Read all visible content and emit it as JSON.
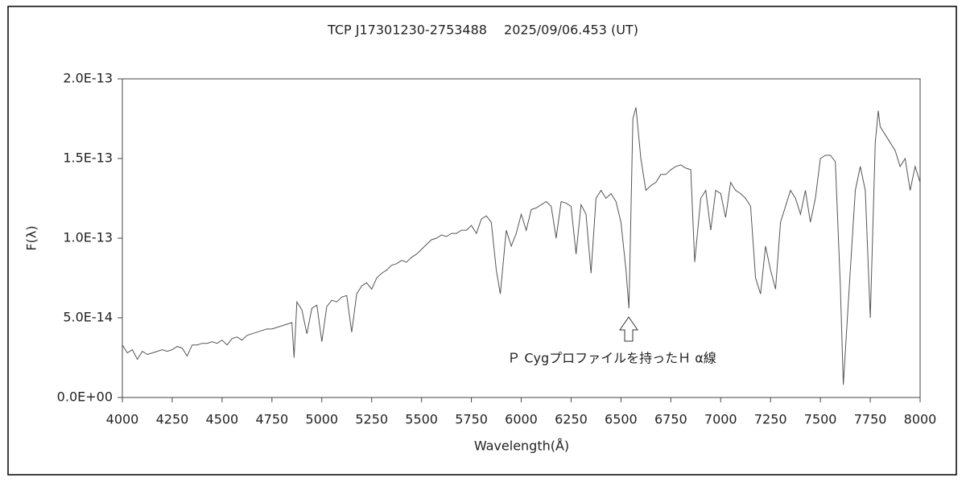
{
  "chart_data": {
    "type": "line",
    "title": "TCP J17301230-2753488　 2025/09/06.453 (UT)",
    "x_label": "Wavelength(Å)",
    "y_label": "F(λ)",
    "annotation": "Ｐ Cygプロファイルを持ったＨ α線",
    "color": "#555555",
    "xlim": [
      4000,
      8000
    ],
    "xticks": [
      4000,
      4250,
      4500,
      4750,
      5000,
      5250,
      5500,
      5750,
      6000,
      6250,
      6500,
      6750,
      7000,
      7250,
      7500,
      7750,
      8000
    ],
    "ylim": [
      0,
      2e-13
    ],
    "yticks": [
      {
        "value": 0,
        "label": "0.0E+00"
      },
      {
        "value": 5e-14,
        "label": "5.0E-14"
      },
      {
        "value": 1e-13,
        "label": "1.0E-13"
      },
      {
        "value": 1.5e-13,
        "label": "1.5E-13"
      },
      {
        "value": 2e-13,
        "label": "2.0E-13"
      }
    ],
    "x": [
      4000,
      4025,
      4050,
      4075,
      4100,
      4125,
      4150,
      4175,
      4200,
      4225,
      4250,
      4275,
      4300,
      4325,
      4350,
      4375,
      4400,
      4425,
      4450,
      4475,
      4500,
      4525,
      4550,
      4575,
      4600,
      4625,
      4650,
      4675,
      4700,
      4725,
      4750,
      4775,
      4800,
      4825,
      4850,
      4861,
      4875,
      4900,
      4925,
      4950,
      4975,
      5000,
      5025,
      5050,
      5075,
      5100,
      5125,
      5150,
      5175,
      5200,
      5225,
      5250,
      5275,
      5300,
      5325,
      5350,
      5375,
      5400,
      5425,
      5450,
      5475,
      5500,
      5525,
      5550,
      5575,
      5600,
      5625,
      5650,
      5675,
      5700,
      5725,
      5750,
      5775,
      5800,
      5825,
      5850,
      5875,
      5895,
      5925,
      5950,
      5975,
      6000,
      6025,
      6050,
      6075,
      6100,
      6125,
      6150,
      6175,
      6200,
      6225,
      6250,
      6275,
      6300,
      6325,
      6350,
      6375,
      6400,
      6425,
      6450,
      6475,
      6500,
      6525,
      6540,
      6560,
      6575,
      6600,
      6625,
      6650,
      6675,
      6700,
      6725,
      6750,
      6775,
      6800,
      6825,
      6850,
      6870,
      6900,
      6925,
      6950,
      6975,
      7000,
      7025,
      7050,
      7075,
      7100,
      7125,
      7150,
      7175,
      7200,
      7225,
      7250,
      7275,
      7300,
      7325,
      7350,
      7375,
      7400,
      7425,
      7450,
      7475,
      7500,
      7525,
      7550,
      7575,
      7600,
      7615,
      7650,
      7675,
      7700,
      7725,
      7750,
      7775,
      7790,
      7800,
      7825,
      7850,
      7875,
      7900,
      7925,
      7950,
      7975,
      8000
    ],
    "values": [
      3.3e-14,
      2.8e-14,
      3e-14,
      2.4e-14,
      2.9e-14,
      2.7e-14,
      2.8e-14,
      2.9e-14,
      3e-14,
      2.9e-14,
      3e-14,
      3.2e-14,
      3.1e-14,
      2.6e-14,
      3.3e-14,
      3.3e-14,
      3.4e-14,
      3.4e-14,
      3.5e-14,
      3.4e-14,
      3.6e-14,
      3.3e-14,
      3.7e-14,
      3.8e-14,
      3.6e-14,
      3.9e-14,
      4e-14,
      4.1e-14,
      4.2e-14,
      4.3e-14,
      4.3e-14,
      4.4e-14,
      4.5e-14,
      4.6e-14,
      4.7e-14,
      2.5e-14,
      6e-14,
      5.5e-14,
      4e-14,
      5.6e-14,
      5.8e-14,
      3.5e-14,
      5.7e-14,
      6.1e-14,
      6e-14,
      6.3e-14,
      6.4e-14,
      4.1e-14,
      6.5e-14,
      7e-14,
      7.2e-14,
      6.8e-14,
      7.5e-14,
      7.8e-14,
      8e-14,
      8.3e-14,
      8.4e-14,
      8.6e-14,
      8.5e-14,
      8.8e-14,
      9e-14,
      9.3e-14,
      9.6e-14,
      9.9e-14,
      1e-13,
      1.02e-13,
      1.01e-13,
      1.03e-13,
      1.03e-13,
      1.05e-13,
      1.05e-13,
      1.08e-13,
      1.03e-13,
      1.12e-13,
      1.14e-13,
      1.1e-13,
      8e-14,
      6.5e-14,
      1.05e-13,
      9.5e-14,
      1.03e-13,
      1.15e-13,
      1.05e-13,
      1.18e-13,
      1.19e-13,
      1.21e-13,
      1.23e-13,
      1.2e-13,
      1e-13,
      1.23e-13,
      1.22e-13,
      1.2e-13,
      9e-14,
      1.21e-13,
      1.15e-13,
      7.8e-14,
      1.25e-13,
      1.3e-13,
      1.25e-13,
      1.28e-13,
      1.23e-13,
      1.1e-13,
      8e-14,
      5.6e-14,
      1.75e-13,
      1.82e-13,
      1.5e-13,
      1.3e-13,
      1.33e-13,
      1.35e-13,
      1.4e-13,
      1.4e-13,
      1.43e-13,
      1.45e-13,
      1.46e-13,
      1.44e-13,
      1.43e-13,
      8.5e-14,
      1.25e-13,
      1.3e-13,
      1.05e-13,
      1.3e-13,
      1.28e-13,
      1.13e-13,
      1.35e-13,
      1.3e-13,
      1.28e-13,
      1.25e-13,
      1.2e-13,
      7.5e-14,
      6.5e-14,
      9.5e-14,
      8e-14,
      6.8e-14,
      1.1e-13,
      1.2e-13,
      1.3e-13,
      1.25e-13,
      1.15e-13,
      1.3e-13,
      1.1e-13,
      1.25e-13,
      1.5e-13,
      1.52e-13,
      1.52e-13,
      1.48e-13,
      7e-14,
      8e-15,
      8e-14,
      1.3e-13,
      1.45e-13,
      1.3e-13,
      5e-14,
      1.6e-13,
      1.8e-13,
      1.7e-13,
      1.65e-13,
      1.6e-13,
      1.55e-13,
      1.45e-13,
      1.5e-13,
      1.3e-13,
      1.45e-13,
      1.35e-13
    ]
  }
}
